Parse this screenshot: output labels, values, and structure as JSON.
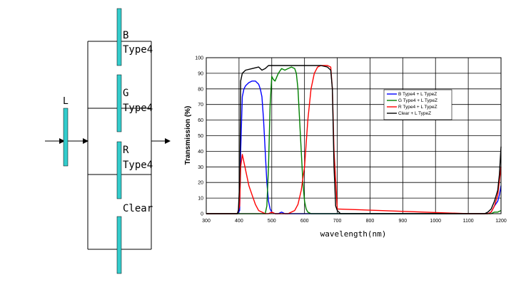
{
  "diagram": {
    "lens_label": "L",
    "filters": [
      {
        "line1": "B",
        "line2": "Type4"
      },
      {
        "line1": "G",
        "line2": "Type4"
      },
      {
        "line1": "R",
        "line2": "Type4"
      },
      {
        "line1": "Clear",
        "line2": ""
      }
    ],
    "filter_color": "#33cccc"
  },
  "chart_data": {
    "type": "line",
    "xlabel": "wavelength(nm)",
    "ylabel": "Transmission (%)",
    "xlim": [
      300,
      1200
    ],
    "ylim": [
      0,
      100
    ],
    "xticks": [
      "300",
      "400",
      "500",
      "600",
      "700",
      "800",
      "900",
      "1000",
      "1100",
      "1200"
    ],
    "yticks": [
      "0",
      "10",
      "20",
      "30",
      "40",
      "50",
      "60",
      "70",
      "80",
      "90",
      "100"
    ],
    "grid": true,
    "legend_position": "right-center",
    "series": [
      {
        "name": "B Type4 + L TypeZ",
        "color": "#0000ff",
        "x": [
          300,
          395,
          402,
          405,
          410,
          415,
          420,
          430,
          440,
          450,
          460,
          465,
          470,
          475,
          480,
          485,
          490,
          495,
          500,
          510,
          520,
          530,
          540,
          550,
          600,
          700,
          1100,
          1160,
          1170,
          1180,
          1190,
          1195,
          1200
        ],
        "y": [
          0,
          0,
          2,
          40,
          75,
          80,
          82,
          84,
          85,
          85,
          83,
          80,
          75,
          60,
          40,
          20,
          8,
          3,
          1,
          0,
          0,
          1,
          0,
          0,
          0,
          0,
          0,
          0,
          1,
          5,
          8,
          12,
          18
        ]
      },
      {
        "name": "G Type4 + L TypeZ",
        "color": "#008000",
        "x": [
          300,
          480,
          485,
          490,
          495,
          500,
          505,
          510,
          520,
          530,
          540,
          550,
          560,
          570,
          575,
          580,
          585,
          590,
          595,
          600,
          605,
          610,
          620,
          650,
          1100,
          1170,
          1180,
          1190,
          1200
        ],
        "y": [
          0,
          0,
          5,
          30,
          70,
          88,
          86,
          85,
          90,
          93,
          92,
          93,
          94,
          93,
          90,
          80,
          60,
          40,
          20,
          8,
          3,
          1,
          0,
          0,
          0,
          0,
          1,
          1,
          2
        ]
      },
      {
        "name": "R Type4 + L TypeZ",
        "color": "#ff0000",
        "x": [
          300,
          395,
          402,
          405,
          410,
          420,
          430,
          440,
          450,
          460,
          470,
          480,
          490,
          500,
          510,
          520,
          530,
          540,
          550,
          560,
          570,
          580,
          590,
          600,
          605,
          610,
          620,
          630,
          640,
          650,
          660,
          670,
          680,
          685,
          690,
          700,
          1100,
          1160,
          1170,
          1180,
          1190,
          1200
        ],
        "y": [
          0,
          0,
          5,
          30,
          38,
          28,
          18,
          12,
          6,
          2,
          1,
          0,
          0,
          1,
          0,
          0,
          0,
          0,
          0,
          1,
          2,
          6,
          15,
          30,
          45,
          60,
          80,
          90,
          94,
          95,
          95,
          95,
          94,
          80,
          40,
          3,
          0,
          0,
          1,
          5,
          12,
          30
        ]
      },
      {
        "name": "Clear + L TypeZ",
        "color": "#000000",
        "x": [
          300,
          395,
          398,
          402,
          405,
          410,
          420,
          440,
          460,
          470,
          480,
          490,
          500,
          550,
          600,
          650,
          670,
          680,
          685,
          690,
          695,
          700,
          710,
          1100,
          1150,
          1160,
          1170,
          1180,
          1190,
          1195,
          1200
        ],
        "y": [
          0,
          0,
          2,
          20,
          85,
          90,
          92,
          93,
          94,
          92,
          93,
          95,
          95,
          95,
          95,
          95,
          94,
          92,
          80,
          30,
          5,
          2,
          0,
          0,
          0,
          1,
          3,
          8,
          15,
          25,
          43
        ]
      }
    ]
  }
}
